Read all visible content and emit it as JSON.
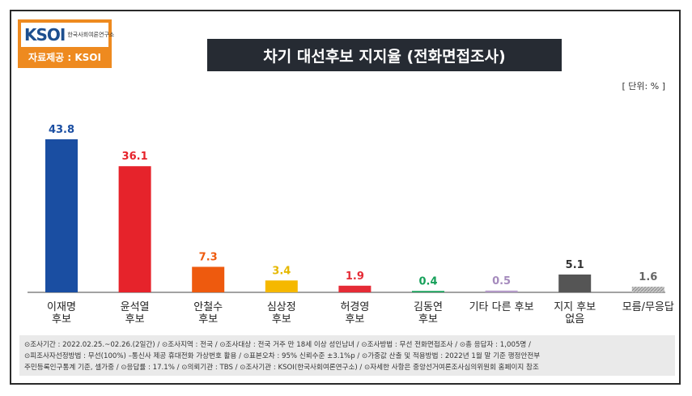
{
  "header": {
    "logo_text": "KSOI",
    "logo_subtitle": "한국사회여론연구소",
    "source_label": "자료제공 : KSOI",
    "title": "차기 대선후보 지지율 (전화면접조사)",
    "unit": "[ 단위: % ]"
  },
  "chart_data": {
    "type": "bar",
    "title": "차기 대선후보 지지율 (전화면접조사)",
    "unit": "%",
    "ylim": [
      0,
      45
    ],
    "grid": false,
    "legend": "none",
    "categories": [
      [
        "이재명",
        "후보"
      ],
      [
        "윤석열",
        "후보"
      ],
      [
        "안철수",
        "후보"
      ],
      [
        "심상정",
        "후보"
      ],
      [
        "허경영",
        "후보"
      ],
      [
        "김동연",
        "후보"
      ],
      [
        "기타 다른 후보"
      ],
      [
        "지지 후보",
        "없음"
      ],
      [
        "모름/무응답"
      ]
    ],
    "values": [
      43.8,
      36.1,
      7.3,
      3.4,
      1.9,
      0.4,
      0.5,
      5.1,
      1.6
    ],
    "value_labels": [
      "43.8",
      "36.1",
      "7.3",
      "3.4",
      "1.9",
      "0.4",
      "0.5",
      "5.1",
      "1.6"
    ],
    "colors": [
      "#1a4ea2",
      "#e6232b",
      "#ee5a0e",
      "#f5b800",
      "#e52b36",
      "#17a05a",
      "#b39ac7",
      "#555555",
      "#aaaaaa"
    ],
    "label_colors": [
      "#1a4ea2",
      "#e6232b",
      "#ee5a0e",
      "#e6b800",
      "#e52b36",
      "#17a05a",
      "#a58bbd",
      "#333333",
      "#666666"
    ]
  },
  "footnote": {
    "lines": [
      "⊙조사기간 : 2022.02.25.~02.26.(2일간) / ⊙조사지역 : 전국 / ⊙조사대상 : 전국 거주 만 18세 이상 성인남녀 / ⊙조사방법 : 무선 전화면접조사 / ⊙총 응답자 : 1,005명 /",
      "⊙피조사자선정방법 : 무선(100%) –통신사 제공 휴대전화 가상번호 활용 / ⊙표본오차 : 95% 신뢰수준 ±3.1%p / ⊙가중값 산출 및 적용방법 : 2022년 1월 말 기준 행정안전부",
      "주민등록인구통계 기준, 셀가중 / ⊙응답률 : 17.1% / ⊙의뢰기관 : TBS / ⊙조사기관 : KSOI(한국사회여론연구소) / ⊙자세한 사항은 중앙선거여론조사심의위원회 홈페이지 참조"
    ]
  }
}
